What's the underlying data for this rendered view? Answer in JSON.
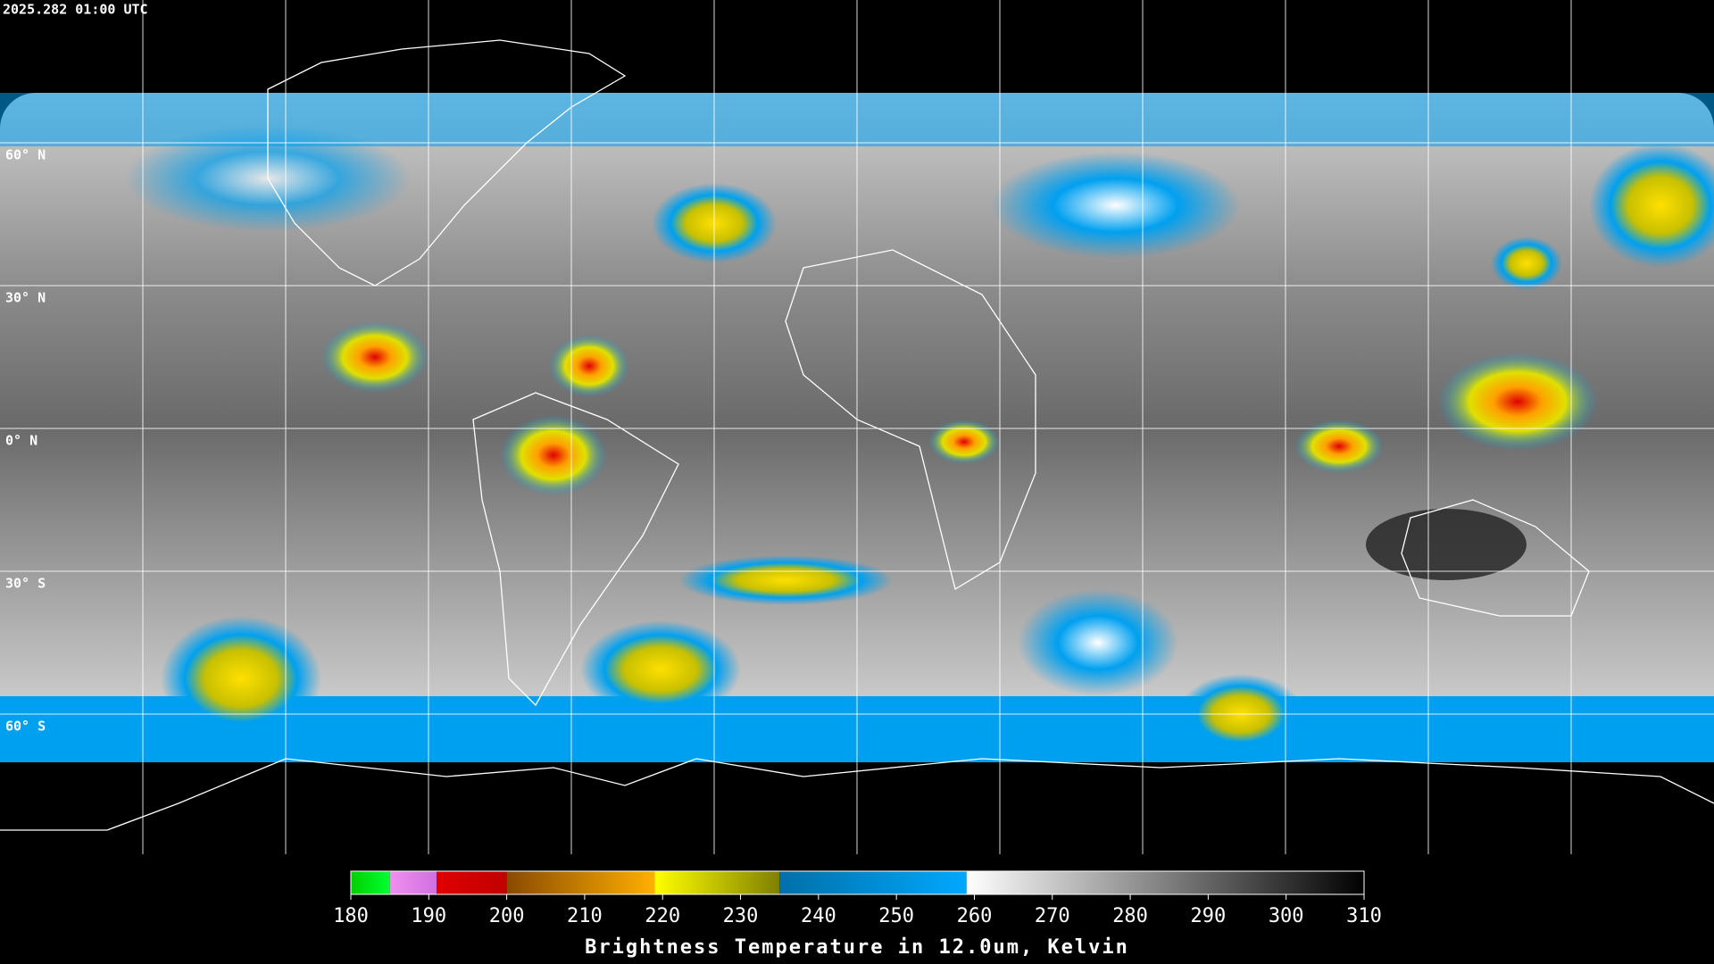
{
  "timestamp": "2025.282 01:00 UTC",
  "lat_labels": [
    "60° N",
    "30° N",
    "0° N",
    "30° S",
    "60° S"
  ],
  "colorbar": {
    "title": "Brightness Temperature in 12.0um, Kelvin",
    "range": [
      180,
      310
    ],
    "ticks": [
      180,
      190,
      200,
      210,
      220,
      230,
      240,
      250,
      260,
      270,
      280,
      290,
      300,
      310
    ],
    "segments": [
      {
        "from": 180,
        "to": 185,
        "colors": [
          "#00d000",
          "#00ff30"
        ]
      },
      {
        "from": 185,
        "to": 191,
        "colors": [
          "#f090f0",
          "#d070e0"
        ]
      },
      {
        "from": 191,
        "to": 200,
        "colors": [
          "#e00000",
          "#c00000"
        ]
      },
      {
        "from": 200,
        "to": 219,
        "colors": [
          "#8a4a00",
          "#ffb000"
        ]
      },
      {
        "from": 219,
        "to": 235,
        "colors": [
          "#ffff00",
          "#808000"
        ]
      },
      {
        "from": 235,
        "to": 259,
        "colors": [
          "#0070a8",
          "#00a8ff"
        ]
      },
      {
        "from": 259,
        "to": 310,
        "colors": [
          "#ffffff",
          "#000000"
        ]
      }
    ]
  }
}
